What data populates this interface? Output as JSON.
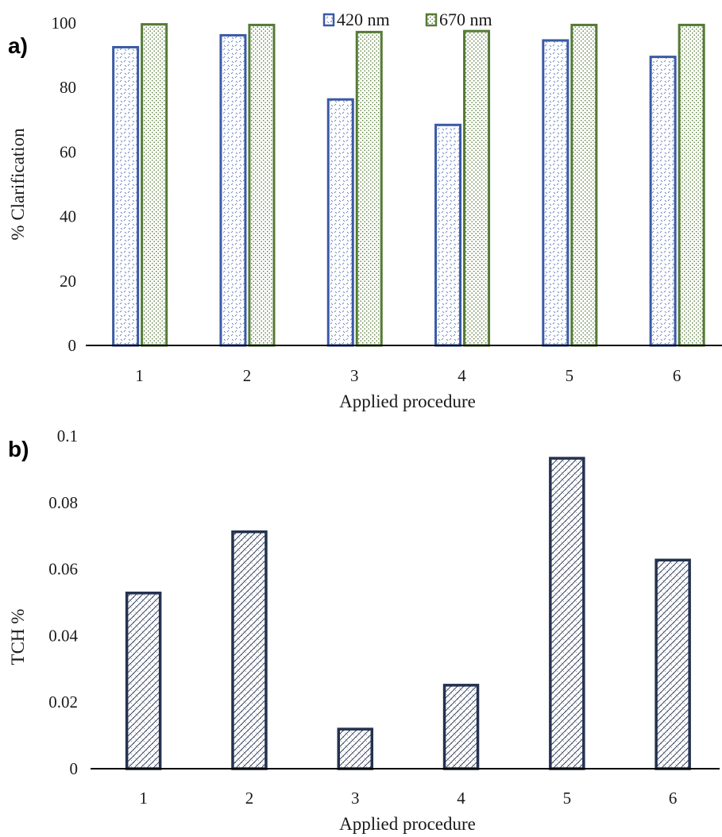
{
  "panels": {
    "a": {
      "label": "a)"
    },
    "b": {
      "label": "b)"
    }
  },
  "colors": {
    "series_420": "#3a5aa6",
    "series_670": "#557a35",
    "tch": "#24324f",
    "axis": "#000000"
  },
  "chart_data": [
    {
      "type": "bar",
      "categories": [
        "1",
        "2",
        "3",
        "4",
        "5",
        "6"
      ],
      "series": [
        {
          "name": "420 nm",
          "values": [
            92.5,
            96.2,
            76.3,
            68.4,
            94.6,
            89.5
          ]
        },
        {
          "name": "670 nm",
          "values": [
            99.6,
            99.4,
            97.2,
            97.5,
            99.4,
            99.4
          ]
        }
      ],
      "xlabel": "Applied procedure",
      "ylabel": "% Clarification",
      "ylim": [
        0,
        100
      ],
      "yticks": [
        "0",
        "20",
        "40",
        "60",
        "80",
        "100"
      ],
      "legend": "top-center",
      "grid": false
    },
    {
      "type": "bar",
      "categories": [
        "1",
        "2",
        "3",
        "4",
        "5",
        "6"
      ],
      "series": [
        {
          "values": [
            0.0528,
            0.0712,
            0.0119,
            0.0251,
            0.0933,
            0.0627
          ]
        }
      ],
      "xlabel": "Applied procedure",
      "ylabel": "TCH %",
      "ylim": [
        0,
        0.1
      ],
      "yticks": [
        "0",
        "0.02",
        "0.04",
        "0.06",
        "0.08",
        "0.1"
      ],
      "grid": false
    }
  ]
}
